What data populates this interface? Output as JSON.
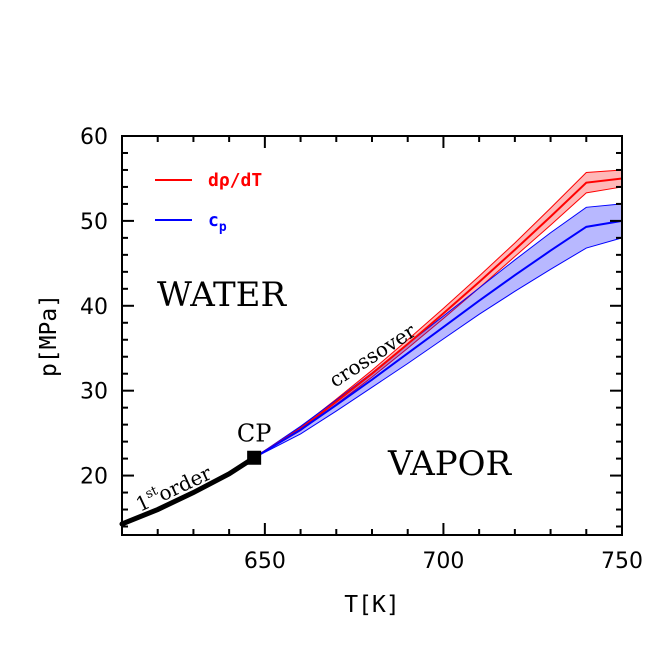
{
  "chart_data": {
    "type": "line",
    "title": "",
    "xlabel": "T[K]",
    "ylabel": "p[MPa]",
    "xlim": [
      610,
      750
    ],
    "ylim": [
      13,
      60
    ],
    "xticks": [
      650,
      700,
      750
    ],
    "yticks": [
      20,
      30,
      40,
      50,
      60
    ],
    "grid": false,
    "legend_position": "top-left",
    "series": [
      {
        "name": "dρ/dT",
        "color": "#ff0000",
        "style": "band",
        "x": [
          647,
          660,
          670,
          680,
          690,
          700,
          710,
          720,
          730,
          740,
          750
        ],
        "y": [
          22.1,
          25.5,
          28.7,
          32.0,
          35.5,
          39.1,
          42.8,
          46.6,
          50.5,
          54.5,
          55.0
        ],
        "y_low": [
          22.1,
          25.3,
          28.4,
          31.6,
          35.0,
          38.5,
          42.1,
          45.8,
          49.5,
          53.3,
          54.0
        ],
        "y_high": [
          22.1,
          25.7,
          29.0,
          32.4,
          36.0,
          39.7,
          43.5,
          47.4,
          51.5,
          55.7,
          56.0
        ]
      },
      {
        "name": "cp",
        "color": "#0000ff",
        "style": "band",
        "x": [
          647,
          660,
          670,
          680,
          690,
          700,
          710,
          720,
          730,
          740,
          750
        ],
        "y": [
          22.1,
          25.4,
          28.3,
          31.3,
          34.4,
          37.5,
          40.6,
          43.6,
          46.5,
          49.3,
          50.0
        ],
        "y_low": [
          22.1,
          24.9,
          27.6,
          30.4,
          33.2,
          36.1,
          39.0,
          41.7,
          44.3,
          46.8,
          48.0
        ],
        "y_high": [
          22.1,
          25.8,
          28.9,
          32.1,
          35.5,
          38.8,
          42.1,
          45.4,
          48.6,
          51.6,
          52.0
        ]
      },
      {
        "name": "1st order",
        "color": "#000000",
        "style": "line",
        "x": [
          610,
          620,
          630,
          640,
          647
        ],
        "y": [
          14.3,
          16.0,
          18.0,
          20.2,
          22.1
        ]
      }
    ],
    "critical_point": {
      "label": "CP",
      "x": 647,
      "y": 22.1
    },
    "annotations": {
      "water": "WATER",
      "vapor": "VAPOR",
      "crossover": "crossover",
      "first_order_superscript_base": "1",
      "first_order_superscript": "st",
      "first_order_text": "order"
    },
    "legend": [
      {
        "label_main": "dρ/dT",
        "label_sub": "",
        "color": "#ff0000"
      },
      {
        "label_main": "c",
        "label_sub": "p",
        "color": "#0000ff"
      }
    ]
  }
}
